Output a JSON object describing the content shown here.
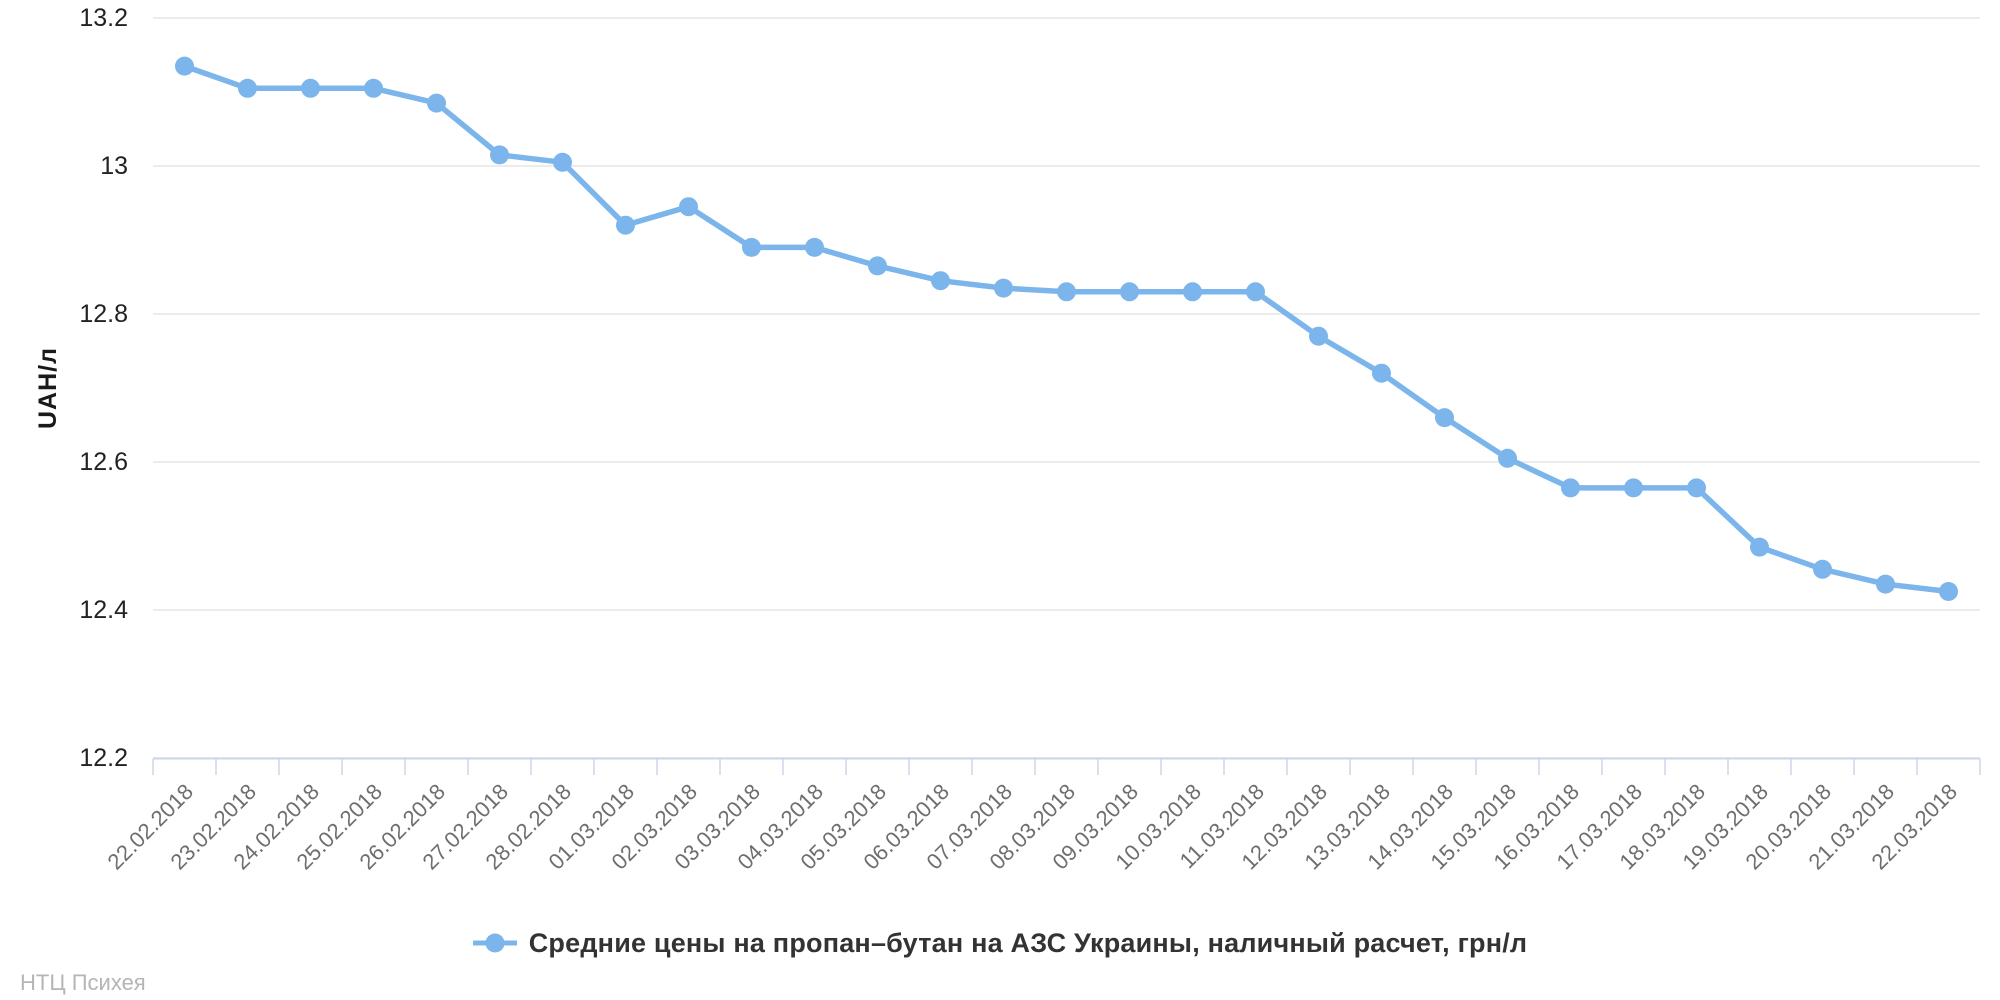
{
  "chart_data": {
    "type": "line",
    "title": "",
    "xlabel": "",
    "ylabel": "UAH/л",
    "x": [
      "22.02.2018",
      "23.02.2018",
      "24.02.2018",
      "25.02.2018",
      "26.02.2018",
      "27.02.2018",
      "28.02.2018",
      "01.03.2018",
      "02.03.2018",
      "03.03.2018",
      "04.03.2018",
      "05.03.2018",
      "06.03.2018",
      "07.03.2018",
      "08.03.2018",
      "09.03.2018",
      "10.03.2018",
      "11.03.2018",
      "12.03.2018",
      "13.03.2018",
      "14.03.2018",
      "15.03.2018",
      "16.03.2018",
      "17.03.2018",
      "18.03.2018",
      "19.03.2018",
      "20.03.2018",
      "21.03.2018",
      "22.03.2018"
    ],
    "series": [
      {
        "name": "Средние цены на пропан–бутан на АЗС Украины, наличный расчет, грн/л",
        "color": "#7cb5ec",
        "values": [
          13.135,
          13.105,
          13.105,
          13.105,
          13.085,
          13.015,
          13.005,
          12.92,
          12.945,
          12.89,
          12.89,
          12.865,
          12.845,
          12.835,
          12.83,
          12.83,
          12.83,
          12.83,
          12.77,
          12.72,
          12.66,
          12.605,
          12.565,
          12.565,
          12.565,
          12.485,
          12.455,
          12.435,
          12.425
        ]
      }
    ],
    "ylim": [
      12.2,
      13.2
    ],
    "ytick_values": [
      13.2,
      13.0,
      12.8,
      12.6,
      12.4,
      12.2
    ],
    "ytick_labels": [
      "13.2",
      "13",
      "12.8",
      "12.6",
      "12.4",
      "12.2"
    ],
    "grid": true,
    "legend_position": "bottom-center"
  },
  "watermark": "НТЦ Психея",
  "colors": {
    "series": "#7cb5ec",
    "gridline": "#e6e6e6",
    "axis_line": "#ccd6eb",
    "y_tick_label": "#222222",
    "x_tick_label": "#6e6e6e",
    "axis_title": "#1a1a1a",
    "legend_text": "#333333",
    "watermark": "#b5b5b5"
  }
}
